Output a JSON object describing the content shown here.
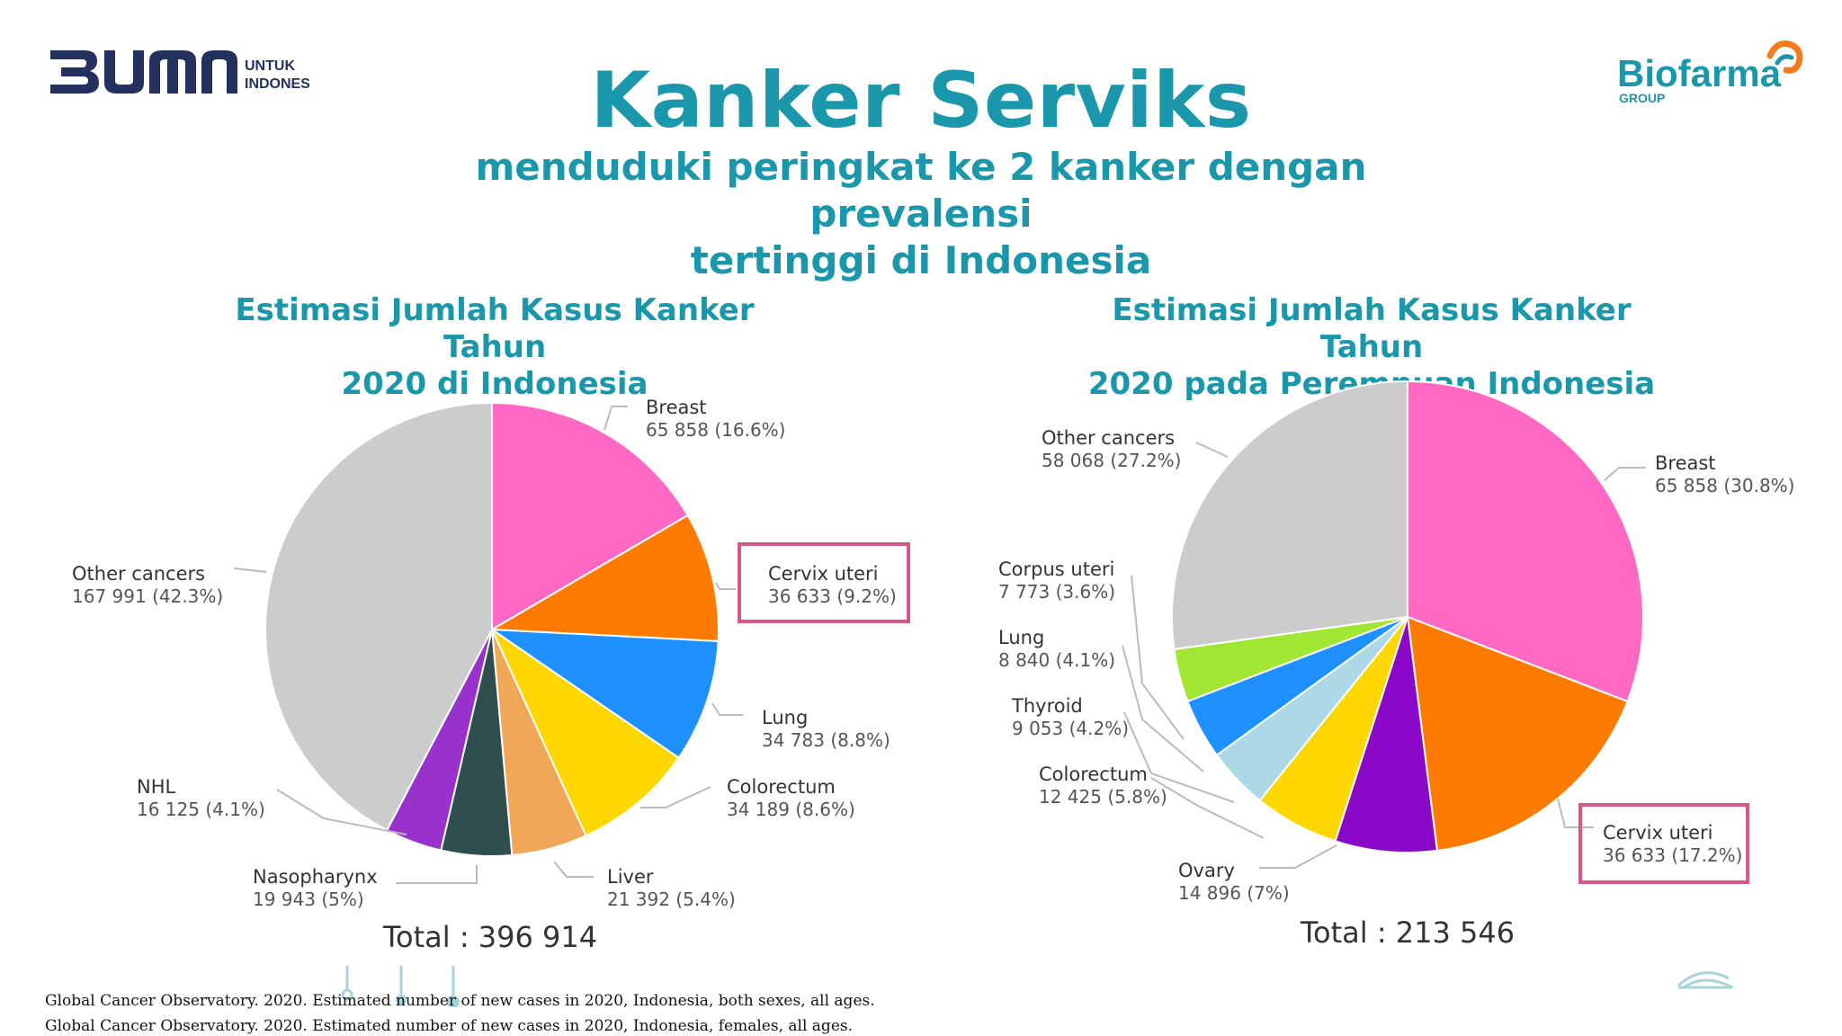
{
  "brand": {
    "bumn_untuk": "UNTUK",
    "bumn_indonesia": "INDONESIA",
    "biofarma_name": "Biofarma",
    "biofarma_group": "GROUP"
  },
  "header": {
    "title": "Kanker Serviks",
    "subtitle_line1": "menduduki peringkat ke 2 kanker dengan prevalensi",
    "subtitle_line2": "tertinggi di Indonesia"
  },
  "footnotes": [
    "Global Cancer Observatory. 2020. Estimated number of new cases in 2020, Indonesia, both sexes, all ages.",
    "Global Cancer Observatory. 2020. Estimated number of new cases in 2020, Indonesia, females, all ages."
  ],
  "chart_data": [
    {
      "type": "pie",
      "title_line1": "Estimasi Jumlah Kasus Kanker Tahun",
      "title_line2": "2020 di Indonesia",
      "total_label": "Total : 396 914",
      "highlighted": "Cervix uteri",
      "highlight_color": "#d9568a",
      "slices": [
        {
          "name": "Breast",
          "value": 65858,
          "label": "65 858 (16.6%)",
          "color": "#ff69c3"
        },
        {
          "name": "Cervix uteri",
          "value": 36633,
          "label": "36 633 (9.2%)",
          "color": "#ff7b00"
        },
        {
          "name": "Lung",
          "value": 34783,
          "label": "34 783 (8.8%)",
          "color": "#1e90ff"
        },
        {
          "name": "Colorectum",
          "value": 34189,
          "label": "34 189 (8.6%)",
          "color": "#ffd700"
        },
        {
          "name": "Liver",
          "value": 21392,
          "label": "21 392 (5.4%)",
          "color": "#f0a858"
        },
        {
          "name": "Nasopharynx",
          "value": 19943,
          "label": "19 943 (5%)",
          "color": "#2f4f4f"
        },
        {
          "name": "NHL",
          "value": 16125,
          "label": "16 125 (4.1%)",
          "color": "#9932cc"
        },
        {
          "name": "Other cancers",
          "value": 167991,
          "label": "167 991 (42.3%)",
          "color": "#cccccc"
        }
      ]
    },
    {
      "type": "pie",
      "title_line1": "Estimasi Jumlah Kasus Kanker Tahun",
      "title_line2": "2020 pada Perempuan Indonesia",
      "total_label": "Total : 213 546",
      "highlighted": "Cervix uteri",
      "highlight_color": "#d9568a",
      "slices": [
        {
          "name": "Breast",
          "value": 65858,
          "label": "65 858 (30.8%)",
          "color": "#ff69c3"
        },
        {
          "name": "Cervix uteri",
          "value": 36633,
          "label": "36 633 (17.2%)",
          "color": "#ff7b00"
        },
        {
          "name": "Ovary",
          "value": 14896,
          "label": "14 896 (7%)",
          "color": "#8a08c8"
        },
        {
          "name": "Colorectum",
          "value": 12425,
          "label": "12 425 (5.8%)",
          "color": "#ffd700"
        },
        {
          "name": "Thyroid",
          "value": 9053,
          "label": "9 053 (4.2%)",
          "color": "#add8e6"
        },
        {
          "name": "Lung",
          "value": 8840,
          "label": "8 840 (4.1%)",
          "color": "#1e90ff"
        },
        {
          "name": "Corpus uteri",
          "value": 7773,
          "label": "7 773 (3.6%)",
          "color": "#a0e632"
        },
        {
          "name": "Other cancers",
          "value": 58068,
          "label": "58 068 (27.2%)",
          "color": "#cccccc"
        }
      ]
    }
  ]
}
